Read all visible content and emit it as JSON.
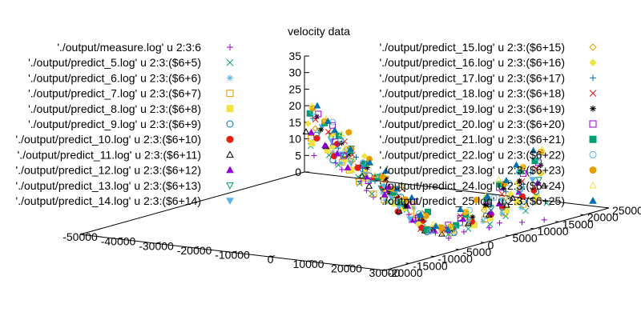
{
  "chart_data": {
    "type": "scatter",
    "title": "velocity data",
    "axes": {
      "x": {
        "range": [
          -50000,
          30000
        ],
        "ticks": [
          -50000,
          -40000,
          -30000,
          -20000,
          -10000,
          0,
          10000,
          20000,
          30000
        ],
        "tick_labels": [
          "-50000",
          "-40000",
          "-30000",
          "-20000",
          "-10000",
          "0",
          "10000",
          "20000",
          "30000"
        ]
      },
      "y": {
        "range": [
          -20000,
          25000
        ],
        "ticks": [
          -20000,
          -15000,
          -10000,
          -5000,
          0,
          5000,
          10000,
          15000,
          20000,
          25000
        ],
        "tick_labels": [
          "-20000",
          "-15000",
          "-10000",
          "-5000",
          "0",
          "5000",
          "10000",
          "15000",
          "20000",
          "25000"
        ]
      },
      "z": {
        "range": [
          0,
          35
        ],
        "ticks": [
          0,
          5,
          10,
          15,
          20,
          25,
          30,
          35
        ],
        "tick_labels": [
          "0",
          "5",
          "10",
          "15",
          "20",
          "25",
          "30",
          "35"
        ]
      }
    },
    "grid": false,
    "legend_placement": "top",
    "series": [
      {
        "name": "'./output/measure.log' u 2:3:6",
        "color": "#9400d3",
        "marker": "plus"
      },
      {
        "name": "'./output/predict_5.log' u 2:3:($6+5)",
        "color": "#009e73",
        "marker": "cross"
      },
      {
        "name": "'./output/predict_6.log' u 2:3:($6+6)",
        "color": "#56b4e9",
        "marker": "star"
      },
      {
        "name": "'./output/predict_7.log' u 2:3:($6+7)",
        "color": "#e69f00",
        "marker": "square"
      },
      {
        "name": "'./output/predict_8.log' u 2:3:($6+8)",
        "color": "#f0e442",
        "marker": "square-filled"
      },
      {
        "name": "'./output/predict_9.log' u 2:3:($6+9)",
        "color": "#0072b2",
        "marker": "circle"
      },
      {
        "name": "'./output/predict_10.log' u 2:3:($6+10)",
        "color": "#e51e10",
        "marker": "circle-filled"
      },
      {
        "name": "'./output/predict_11.log' u 2:3:($6+11)",
        "color": "#000000",
        "marker": "triangle"
      },
      {
        "name": "'./output/predict_12.log' u 2:3:($6+12)",
        "color": "#9400d3",
        "marker": "triangle-filled"
      },
      {
        "name": "'./output/predict_13.log' u 2:3:($6+13)",
        "color": "#009e73",
        "marker": "triangle-down"
      },
      {
        "name": "'./output/predict_14.log' u 2:3:($6+14)",
        "color": "#56b4e9",
        "marker": "triangle-down-filled"
      },
      {
        "name": "'./output/predict_15.log' u 2:3:($6+15)",
        "color": "#e69f00",
        "marker": "diamond"
      },
      {
        "name": "'./output/predict_16.log' u 2:3:($6+16)",
        "color": "#f0e442",
        "marker": "diamond-filled"
      },
      {
        "name": "'./output/predict_17.log' u 2:3:($6+17)",
        "color": "#0072b2",
        "marker": "plus"
      },
      {
        "name": "'./output/predict_18.log' u 2:3:($6+18)",
        "color": "#e51e10",
        "marker": "cross"
      },
      {
        "name": "'./output/predict_19.log' u 2:3:($6+19)",
        "color": "#000000",
        "marker": "star"
      },
      {
        "name": "'./output/predict_20.log' u 2:3:($6+20)",
        "color": "#9400d3",
        "marker": "square"
      },
      {
        "name": "'./output/predict_21.log' u 2:3:($6+21)",
        "color": "#009e73",
        "marker": "square-filled"
      },
      {
        "name": "'./output/predict_22.log' u 2:3:($6+22)",
        "color": "#56b4e9",
        "marker": "circle"
      },
      {
        "name": "'./output/predict_23.log' u 2:3:($6+23)",
        "color": "#e69f00",
        "marker": "circle-filled"
      },
      {
        "name": "'./output/predict_24.log' u 2:3:($6+24)",
        "color": "#f0e442",
        "marker": "triangle"
      },
      {
        "name": "'./output/predict_25.log' u 2:3:($6+25)",
        "color": "#0072b2",
        "marker": "triangle-filled"
      }
    ]
  }
}
